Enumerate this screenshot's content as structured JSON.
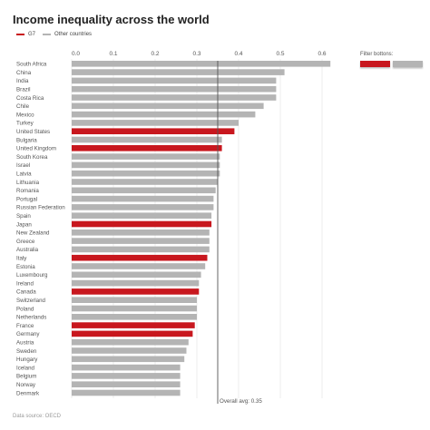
{
  "title": "Income inequality across the world",
  "legend": {
    "g7_label": "G7",
    "other_label": "Other countries"
  },
  "filter": {
    "label": "Filter bottons:"
  },
  "source": "Data source: OECD",
  "colors": {
    "g7": "#c8171e",
    "other": "#b4b4b4",
    "grid": "#e0e0e0",
    "avg_line": "#555555"
  },
  "chart_data": {
    "type": "bar",
    "orientation": "horizontal",
    "title": "Income inequality across the world",
    "xlim": [
      0,
      0.6
    ],
    "x_ticks": [
      "0.0",
      "0.1",
      "0.2",
      "0.3",
      "0.4",
      "0.5",
      "0.6"
    ],
    "tick_values": [
      0,
      0.1,
      0.2,
      0.3,
      0.4,
      0.5,
      0.6
    ],
    "grid": true,
    "average": {
      "value": 0.35,
      "label": "Overall avg: 0.35"
    },
    "legend_position": "top-left",
    "series": [
      {
        "name": "G7"
      },
      {
        "name": "Other countries"
      }
    ],
    "categories": [
      "South Africa",
      "China",
      "India",
      "Brazil",
      "Costa Rica",
      "Chile",
      "Mexico",
      "Turkey",
      "United States",
      "Bulgaria",
      "United Kingdom",
      "South Korea",
      "Israel",
      "Latvia",
      "Lithuania",
      "Romania",
      "Portugal",
      "Russian Federation",
      "Spain",
      "Japan",
      "New Zealand",
      "Greece",
      "Australia",
      "Italy",
      "Estonia",
      "Luxembourg",
      "Ireland",
      "Canada",
      "Switzerland",
      "Poland",
      "Netherlands",
      "France",
      "Germany",
      "Austria",
      "Sweden",
      "Hungary",
      "Iceland",
      "Belgium",
      "Norway",
      "Denmark"
    ],
    "values": [
      0.62,
      0.51,
      0.49,
      0.49,
      0.49,
      0.46,
      0.44,
      0.4,
      0.39,
      0.36,
      0.36,
      0.355,
      0.355,
      0.355,
      0.35,
      0.345,
      0.34,
      0.34,
      0.335,
      0.335,
      0.33,
      0.33,
      0.33,
      0.325,
      0.32,
      0.31,
      0.305,
      0.305,
      0.3,
      0.3,
      0.3,
      0.295,
      0.29,
      0.28,
      0.275,
      0.27,
      0.26,
      0.26,
      0.26,
      0.26
    ],
    "groups": [
      "Other countries",
      "Other countries",
      "Other countries",
      "Other countries",
      "Other countries",
      "Other countries",
      "Other countries",
      "Other countries",
      "G7",
      "Other countries",
      "G7",
      "Other countries",
      "Other countries",
      "Other countries",
      "Other countries",
      "Other countries",
      "Other countries",
      "Other countries",
      "Other countries",
      "G7",
      "Other countries",
      "Other countries",
      "Other countries",
      "G7",
      "Other countries",
      "Other countries",
      "Other countries",
      "G7",
      "Other countries",
      "Other countries",
      "Other countries",
      "G7",
      "G7",
      "Other countries",
      "Other countries",
      "Other countries",
      "Other countries",
      "Other countries",
      "Other countries",
      "Other countries"
    ]
  }
}
